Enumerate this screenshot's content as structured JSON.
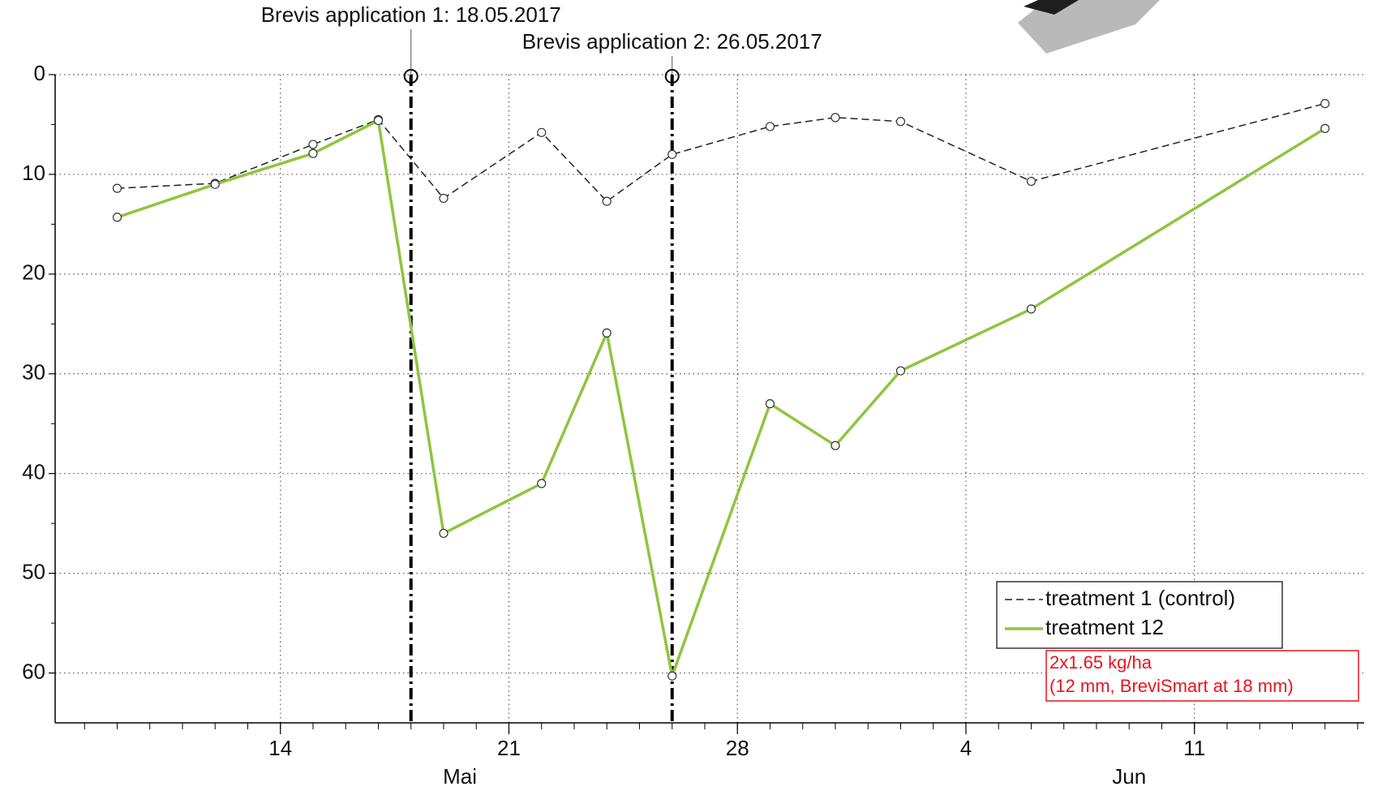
{
  "chart_data": {
    "type": "line",
    "x": [
      9,
      12,
      15,
      17,
      19,
      22,
      24,
      26,
      29,
      31,
      33,
      37,
      46
    ],
    "series": [
      {
        "name": "treatment 1 (control)",
        "color": "#222222",
        "line_style": "dashed",
        "values": [
          11.4,
          10.9,
          7.0,
          4.5,
          12.4,
          5.8,
          12.7,
          8.0,
          5.2,
          4.3,
          4.7,
          10.7,
          2.9
        ]
      },
      {
        "name": "treatment 12",
        "color": "#8dc63f",
        "line_style": "solid",
        "values": [
          14.3,
          11.0,
          7.9,
          4.6,
          46.0,
          41.0,
          25.9,
          60.3,
          33.0,
          37.2,
          29.7,
          23.5,
          5.4
        ]
      }
    ],
    "xlim": [
      7.1,
      47.2
    ],
    "xticks": [
      14,
      21,
      28,
      {
        "value": 35,
        "label": "4"
      },
      {
        "value": 42,
        "label": "11"
      }
    ],
    "month_labels": [
      {
        "value": 19.5,
        "label": "Mai"
      },
      {
        "value": 40,
        "label": "Jun"
      }
    ],
    "ylim": [
      65,
      0
    ],
    "y_inverted": true,
    "yticks": [
      0,
      10,
      20,
      30,
      40,
      50,
      60
    ],
    "grid": true,
    "legend": "lower right",
    "annotations": [
      {
        "x": 18,
        "text": "Brevis application 1: 18.05.2017"
      },
      {
        "x": 26,
        "text": "Brevis application 2: 26.05.2017"
      }
    ],
    "note": [
      "2x1.65 kg/ha",
      "(12 mm, BreviSmart at 18 mm)"
    ],
    "note_color": "#e8141c"
  }
}
